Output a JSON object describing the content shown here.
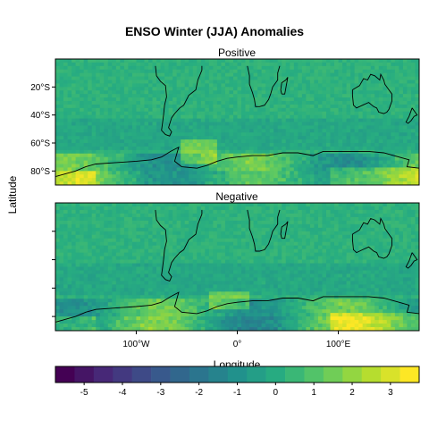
{
  "chart_data": {
    "type": "heatmap",
    "title": "ENSO Winter (JJA) Anomalies",
    "xlabel": "Longitude",
    "ylabel": "Latitude",
    "xlim": [
      -180,
      180
    ],
    "ylim": [
      -90,
      0
    ],
    "x_ticks": [
      {
        "value": -100,
        "label": "100°W"
      },
      {
        "value": 0,
        "label": "0°"
      },
      {
        "value": 100,
        "label": "100°E"
      }
    ],
    "y_ticks": [
      {
        "value": -20,
        "label": "20°S"
      },
      {
        "value": -40,
        "label": "40°S"
      },
      {
        "value": -60,
        "label": "60°S"
      },
      {
        "value": -80,
        "label": "80°S"
      }
    ],
    "panels": [
      {
        "name": "Positive"
      },
      {
        "name": "Negative"
      }
    ],
    "colorbar": {
      "min": -5.75,
      "max": 3.75,
      "ticks": [
        -5,
        -4,
        -3,
        -2,
        -1,
        0,
        1,
        2,
        3
      ],
      "colors": [
        "#440154",
        "#472d7b",
        "#3b528b",
        "#2c728e",
        "#21918c",
        "#28ae80",
        "#5ec962",
        "#addc30",
        "#fde725"
      ]
    },
    "value_range": [
      -5.5,
      3.5
    ],
    "grid": false,
    "legend_position": "bottom"
  }
}
